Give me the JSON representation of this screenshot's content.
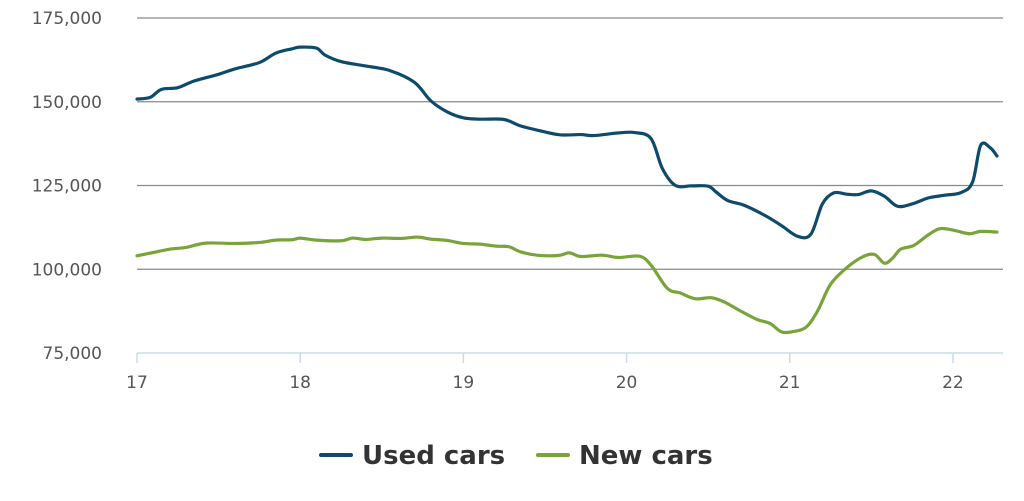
{
  "chart_data": {
    "type": "line",
    "title": "",
    "xlabel": "",
    "ylabel": "",
    "xlim": [
      17,
      22.27
    ],
    "ylim": [
      75000,
      175000
    ],
    "x_ticks": [
      17,
      18,
      19,
      20,
      21,
      22
    ],
    "x_tick_labels": [
      "17",
      "18",
      "19",
      "20",
      "21",
      "22"
    ],
    "y_ticks": [
      75000,
      100000,
      125000,
      150000,
      175000
    ],
    "y_tick_labels": [
      "75,000",
      "100,000",
      "125,000",
      "150,000",
      "175,000"
    ],
    "grid": "horizontal",
    "legend_position": "bottom",
    "series": [
      {
        "name": "Used cars",
        "color": "#0d4a6b",
        "points": [
          [
            17.0,
            150800
          ],
          [
            17.08,
            151300
          ],
          [
            17.15,
            153700
          ],
          [
            17.25,
            154200
          ],
          [
            17.35,
            156200
          ],
          [
            17.5,
            158200
          ],
          [
            17.6,
            159800
          ],
          [
            17.75,
            161700
          ],
          [
            17.85,
            164500
          ],
          [
            17.95,
            165800
          ],
          [
            18.0,
            166300
          ],
          [
            18.1,
            166000
          ],
          [
            18.15,
            164000
          ],
          [
            18.25,
            162000
          ],
          [
            18.4,
            160700
          ],
          [
            18.55,
            159300
          ],
          [
            18.7,
            155800
          ],
          [
            18.8,
            150300
          ],
          [
            18.9,
            147000
          ],
          [
            19.0,
            145200
          ],
          [
            19.1,
            144800
          ],
          [
            19.25,
            144700
          ],
          [
            19.35,
            142800
          ],
          [
            19.5,
            141000
          ],
          [
            19.6,
            140100
          ],
          [
            19.72,
            140200
          ],
          [
            19.8,
            139900
          ],
          [
            19.95,
            140700
          ],
          [
            20.05,
            140800
          ],
          [
            20.15,
            139000
          ],
          [
            20.22,
            130000
          ],
          [
            20.3,
            125000
          ],
          [
            20.4,
            124900
          ],
          [
            20.5,
            124800
          ],
          [
            20.55,
            123000
          ],
          [
            20.62,
            120500
          ],
          [
            20.72,
            119100
          ],
          [
            20.85,
            116000
          ],
          [
            20.95,
            113000
          ],
          [
            21.05,
            109800
          ],
          [
            21.13,
            110500
          ],
          [
            21.2,
            119500
          ],
          [
            21.27,
            122800
          ],
          [
            21.35,
            122400
          ],
          [
            21.42,
            122300
          ],
          [
            21.5,
            123400
          ],
          [
            21.58,
            121800
          ],
          [
            21.66,
            118800
          ],
          [
            21.75,
            119500
          ],
          [
            21.85,
            121300
          ],
          [
            21.95,
            122100
          ],
          [
            22.05,
            122900
          ],
          [
            22.12,
            126000
          ],
          [
            22.17,
            137000
          ],
          [
            22.23,
            136200
          ],
          [
            22.27,
            133800
          ]
        ]
      },
      {
        "name": "New cars",
        "color": "#7aa33a",
        "points": [
          [
            17.0,
            104000
          ],
          [
            17.1,
            105000
          ],
          [
            17.2,
            106000
          ],
          [
            17.3,
            106500
          ],
          [
            17.42,
            107800
          ],
          [
            17.6,
            107700
          ],
          [
            17.75,
            108000
          ],
          [
            17.85,
            108700
          ],
          [
            17.95,
            108800
          ],
          [
            18.0,
            109300
          ],
          [
            18.1,
            108700
          ],
          [
            18.25,
            108500
          ],
          [
            18.32,
            109300
          ],
          [
            18.4,
            108900
          ],
          [
            18.5,
            109300
          ],
          [
            18.62,
            109200
          ],
          [
            18.72,
            109600
          ],
          [
            18.8,
            109000
          ],
          [
            18.9,
            108600
          ],
          [
            19.0,
            107700
          ],
          [
            19.1,
            107500
          ],
          [
            19.2,
            106900
          ],
          [
            19.28,
            106700
          ],
          [
            19.35,
            105200
          ],
          [
            19.45,
            104200
          ],
          [
            19.58,
            104100
          ],
          [
            19.65,
            104900
          ],
          [
            19.72,
            103800
          ],
          [
            19.85,
            104200
          ],
          [
            19.95,
            103500
          ],
          [
            20.08,
            103900
          ],
          [
            20.15,
            101200
          ],
          [
            20.25,
            94300
          ],
          [
            20.33,
            92900
          ],
          [
            20.42,
            91200
          ],
          [
            20.52,
            91500
          ],
          [
            20.6,
            90200
          ],
          [
            20.7,
            87500
          ],
          [
            20.8,
            85000
          ],
          [
            20.88,
            83800
          ],
          [
            20.95,
            81300
          ],
          [
            21.02,
            81400
          ],
          [
            21.1,
            82700
          ],
          [
            21.17,
            87500
          ],
          [
            21.25,
            95500
          ],
          [
            21.35,
            100500
          ],
          [
            21.45,
            103800
          ],
          [
            21.52,
            104400
          ],
          [
            21.58,
            101800
          ],
          [
            21.63,
            103300
          ],
          [
            21.68,
            106000
          ],
          [
            21.76,
            107100
          ],
          [
            21.85,
            110300
          ],
          [
            21.92,
            112100
          ],
          [
            22.0,
            111700
          ],
          [
            22.1,
            110600
          ],
          [
            22.17,
            111300
          ],
          [
            22.27,
            111100
          ]
        ]
      }
    ]
  }
}
